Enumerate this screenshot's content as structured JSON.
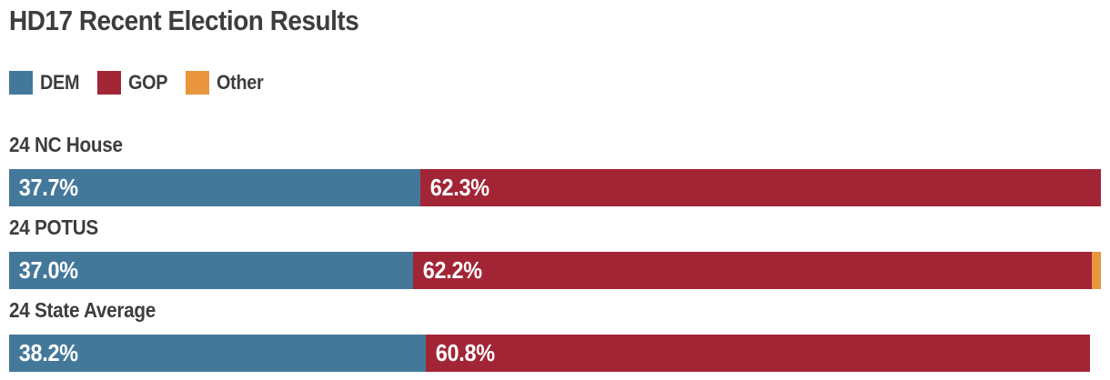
{
  "title": "HD17 Recent Election Results",
  "colors": {
    "heading_text": "#3D3D3D",
    "bar_value_text": "#FFFFFF",
    "background": "#FFFFFF",
    "dem": "#44789B",
    "gop": "#A22536",
    "other": "#E8953E"
  },
  "chart_data": {
    "type": "bar",
    "variant": "horizontal-stacked",
    "title": "HD17 Recent Election Results",
    "categories": [
      "24 NC House",
      "24 POTUS",
      "24 State Average"
    ],
    "series": [
      {
        "name": "DEM",
        "color": "#44789B",
        "values": [
          37.7,
          37.0,
          38.2
        ],
        "labels": [
          "37.7%",
          "37.0%",
          "38.2%"
        ]
      },
      {
        "name": "GOP",
        "color": "#A22536",
        "values": [
          62.3,
          62.2,
          60.8
        ],
        "labels": [
          "62.3%",
          "62.2%",
          "60.8%"
        ]
      },
      {
        "name": "Other",
        "color": "#E8953E",
        "values": [
          0,
          0.8,
          0
        ],
        "labels": [
          "",
          "",
          ""
        ]
      }
    ],
    "xlim": [
      0,
      100
    ],
    "unit": "percent",
    "grid": false,
    "legend_position": "top-left",
    "value_label_position": "inside-left"
  }
}
